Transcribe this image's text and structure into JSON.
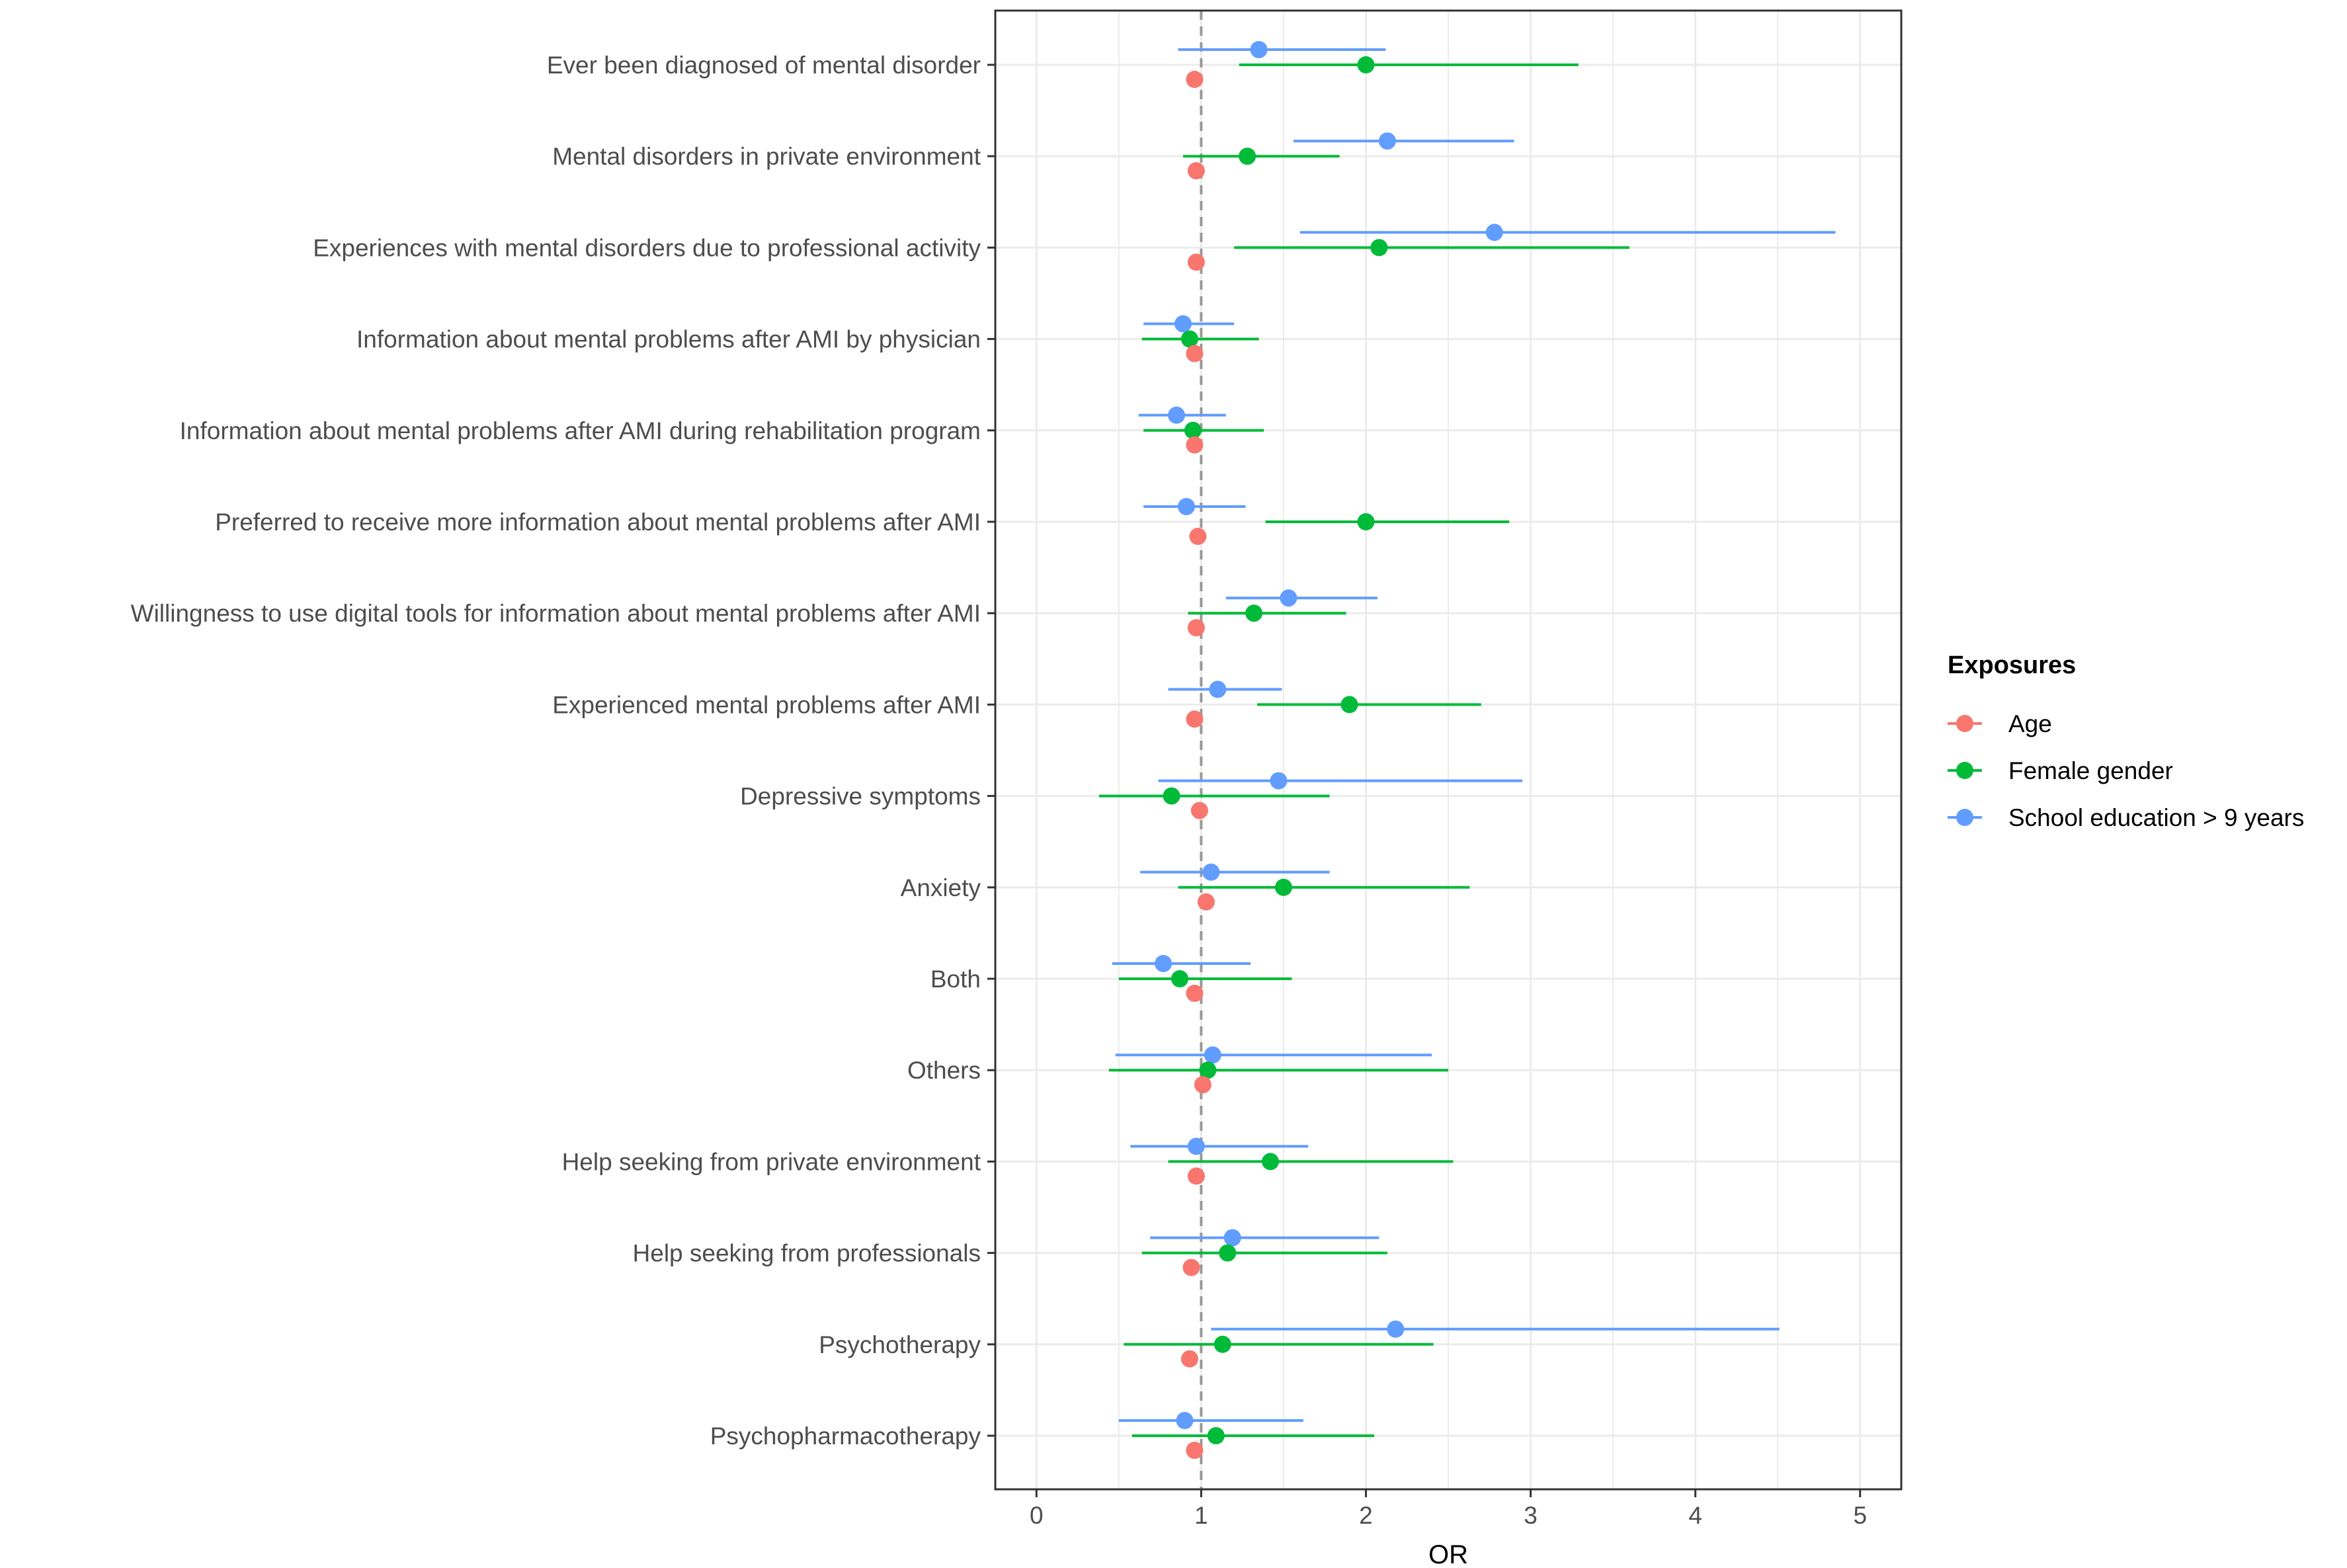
{
  "chart_data": {
    "type": "forest",
    "xlabel": "OR",
    "xlim": [
      -0.25,
      5.25
    ],
    "xticks": [
      0,
      1,
      2,
      3,
      4,
      5
    ],
    "reference_line": 1,
    "legend_title": "Exposures",
    "legend_position": "right",
    "series": [
      {
        "name": "Age",
        "color": "#F8766D"
      },
      {
        "name": "Female gender",
        "color": "#00BA38"
      },
      {
        "name": "School education > 9 years",
        "color": "#619CFF"
      }
    ],
    "rows": [
      {
        "label": "Ever been diagnosed of mental disorder",
        "age": {
          "or": 0.96,
          "lo": 0.96,
          "hi": 0.96
        },
        "female": {
          "or": 2.0,
          "lo": 1.23,
          "hi": 3.29
        },
        "school": {
          "or": 1.35,
          "lo": 0.86,
          "hi": 2.12
        }
      },
      {
        "label": "Mental disorders in private environment",
        "age": {
          "or": 0.97,
          "lo": 0.97,
          "hi": 0.97
        },
        "female": {
          "or": 1.28,
          "lo": 0.89,
          "hi": 1.84
        },
        "school": {
          "or": 2.13,
          "lo": 1.56,
          "hi": 2.9
        }
      },
      {
        "label": "Experiences with mental disorders due to professional activity",
        "age": {
          "or": 0.97,
          "lo": 0.97,
          "hi": 0.97
        },
        "female": {
          "or": 2.08,
          "lo": 1.2,
          "hi": 3.6
        },
        "school": {
          "or": 2.78,
          "lo": 1.6,
          "hi": 4.85
        }
      },
      {
        "label": "Information about mental problems after AMI by physician",
        "age": {
          "or": 0.96,
          "lo": 0.96,
          "hi": 0.96
        },
        "female": {
          "or": 0.93,
          "lo": 0.64,
          "hi": 1.35
        },
        "school": {
          "or": 0.89,
          "lo": 0.65,
          "hi": 1.2
        }
      },
      {
        "label": "Information about mental problems after AMI during rehabilitation program",
        "age": {
          "or": 0.96,
          "lo": 0.96,
          "hi": 0.96
        },
        "female": {
          "or": 0.95,
          "lo": 0.65,
          "hi": 1.38
        },
        "school": {
          "or": 0.85,
          "lo": 0.62,
          "hi": 1.15
        }
      },
      {
        "label": "Preferred to receive more information about mental problems after AMI",
        "age": {
          "or": 0.98,
          "lo": 0.98,
          "hi": 0.98
        },
        "female": {
          "or": 2.0,
          "lo": 1.39,
          "hi": 2.87
        },
        "school": {
          "or": 0.91,
          "lo": 0.65,
          "hi": 1.27
        }
      },
      {
        "label": "Willingness to use digital tools for information about mental problems after AMI",
        "age": {
          "or": 0.97,
          "lo": 0.97,
          "hi": 0.97
        },
        "female": {
          "or": 1.32,
          "lo": 0.92,
          "hi": 1.88
        },
        "school": {
          "or": 1.53,
          "lo": 1.15,
          "hi": 2.07
        }
      },
      {
        "label": "Experienced mental problems after AMI",
        "age": {
          "or": 0.96,
          "lo": 0.96,
          "hi": 0.96
        },
        "female": {
          "or": 1.9,
          "lo": 1.34,
          "hi": 2.7
        },
        "school": {
          "or": 1.1,
          "lo": 0.8,
          "hi": 1.49
        }
      },
      {
        "label": "Depressive symptoms",
        "age": {
          "or": 0.99,
          "lo": 0.99,
          "hi": 0.99
        },
        "female": {
          "or": 0.82,
          "lo": 0.38,
          "hi": 1.78
        },
        "school": {
          "or": 1.47,
          "lo": 0.74,
          "hi": 2.95
        }
      },
      {
        "label": "Anxiety",
        "age": {
          "or": 1.03,
          "lo": 1.03,
          "hi": 1.03
        },
        "female": {
          "or": 1.5,
          "lo": 0.86,
          "hi": 2.63
        },
        "school": {
          "or": 1.06,
          "lo": 0.63,
          "hi": 1.78
        }
      },
      {
        "label": "Both",
        "age": {
          "or": 0.96,
          "lo": 0.96,
          "hi": 0.96
        },
        "female": {
          "or": 0.87,
          "lo": 0.5,
          "hi": 1.55
        },
        "school": {
          "or": 0.77,
          "lo": 0.46,
          "hi": 1.3
        }
      },
      {
        "label": "Others",
        "age": {
          "or": 1.01,
          "lo": 1.01,
          "hi": 1.01
        },
        "female": {
          "or": 1.04,
          "lo": 0.44,
          "hi": 2.5
        },
        "school": {
          "or": 1.07,
          "lo": 0.48,
          "hi": 2.4
        }
      },
      {
        "label": "Help seeking from private environment",
        "age": {
          "or": 0.97,
          "lo": 0.97,
          "hi": 0.97
        },
        "female": {
          "or": 1.42,
          "lo": 0.8,
          "hi": 2.53
        },
        "school": {
          "or": 0.97,
          "lo": 0.57,
          "hi": 1.65
        }
      },
      {
        "label": "Help seeking from professionals",
        "age": {
          "or": 0.94,
          "lo": 0.94,
          "hi": 0.94
        },
        "female": {
          "or": 1.16,
          "lo": 0.64,
          "hi": 2.13
        },
        "school": {
          "or": 1.19,
          "lo": 0.69,
          "hi": 2.08
        }
      },
      {
        "label": "Psychotherapy",
        "age": {
          "or": 0.93,
          "lo": 0.93,
          "hi": 0.93
        },
        "female": {
          "or": 1.13,
          "lo": 0.53,
          "hi": 2.41
        },
        "school": {
          "or": 2.18,
          "lo": 1.06,
          "hi": 4.51
        }
      },
      {
        "label": "Psychopharmacotherapy",
        "age": {
          "or": 0.96,
          "lo": 0.96,
          "hi": 0.96
        },
        "female": {
          "or": 1.09,
          "lo": 0.58,
          "hi": 2.05
        },
        "school": {
          "or": 0.9,
          "lo": 0.5,
          "hi": 1.62
        }
      }
    ]
  }
}
